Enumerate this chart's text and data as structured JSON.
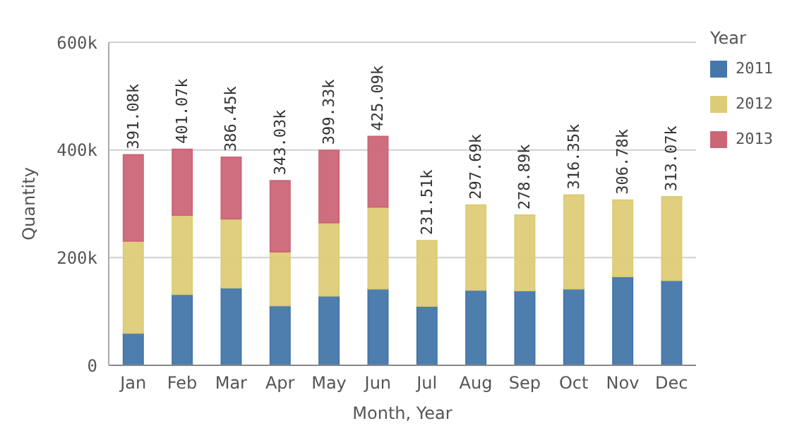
{
  "chart_data": {
    "type": "bar",
    "stacked": true,
    "xlabel": "Month, Year",
    "ylabel": "Quantity",
    "legend_title": "Year",
    "legend": "right",
    "grid": "y",
    "categories": [
      "Jan",
      "Feb",
      "Mar",
      "Apr",
      "May",
      "Jun",
      "Jul",
      "Aug",
      "Sep",
      "Oct",
      "Nov",
      "Dec"
    ],
    "series": [
      {
        "name": "2011",
        "color": "#4477aa",
        "values": [
          60,
          132,
          144,
          111,
          129,
          142,
          110,
          140,
          139,
          142,
          165,
          158
        ]
      },
      {
        "name": "2012",
        "color": "#ddcc77",
        "values": [
          171,
          147,
          128,
          100,
          136,
          152,
          121.51,
          157.69,
          139.89,
          174.35,
          141.78,
          155.07
        ]
      },
      {
        "name": "2013",
        "color": "#cc6677",
        "values": [
          160.08,
          122.07,
          114.45,
          132.03,
          134.33,
          131.09,
          null,
          null,
          null,
          null,
          null,
          null
        ]
      }
    ],
    "totals": [
      "391.08k",
      "401.07k",
      "386.45k",
      "343.03k",
      "399.33k",
      "425.09k",
      "231.51k",
      "297.69k",
      "278.89k",
      "316.35k",
      "306.78k",
      "313.07k"
    ],
    "ylim": [
      0,
      600
    ],
    "yticks": [
      {
        "value": 0,
        "label": "0"
      },
      {
        "value": 200,
        "label": "200k"
      },
      {
        "value": 400,
        "label": "400k"
      },
      {
        "value": 600,
        "label": "600k"
      }
    ]
  }
}
